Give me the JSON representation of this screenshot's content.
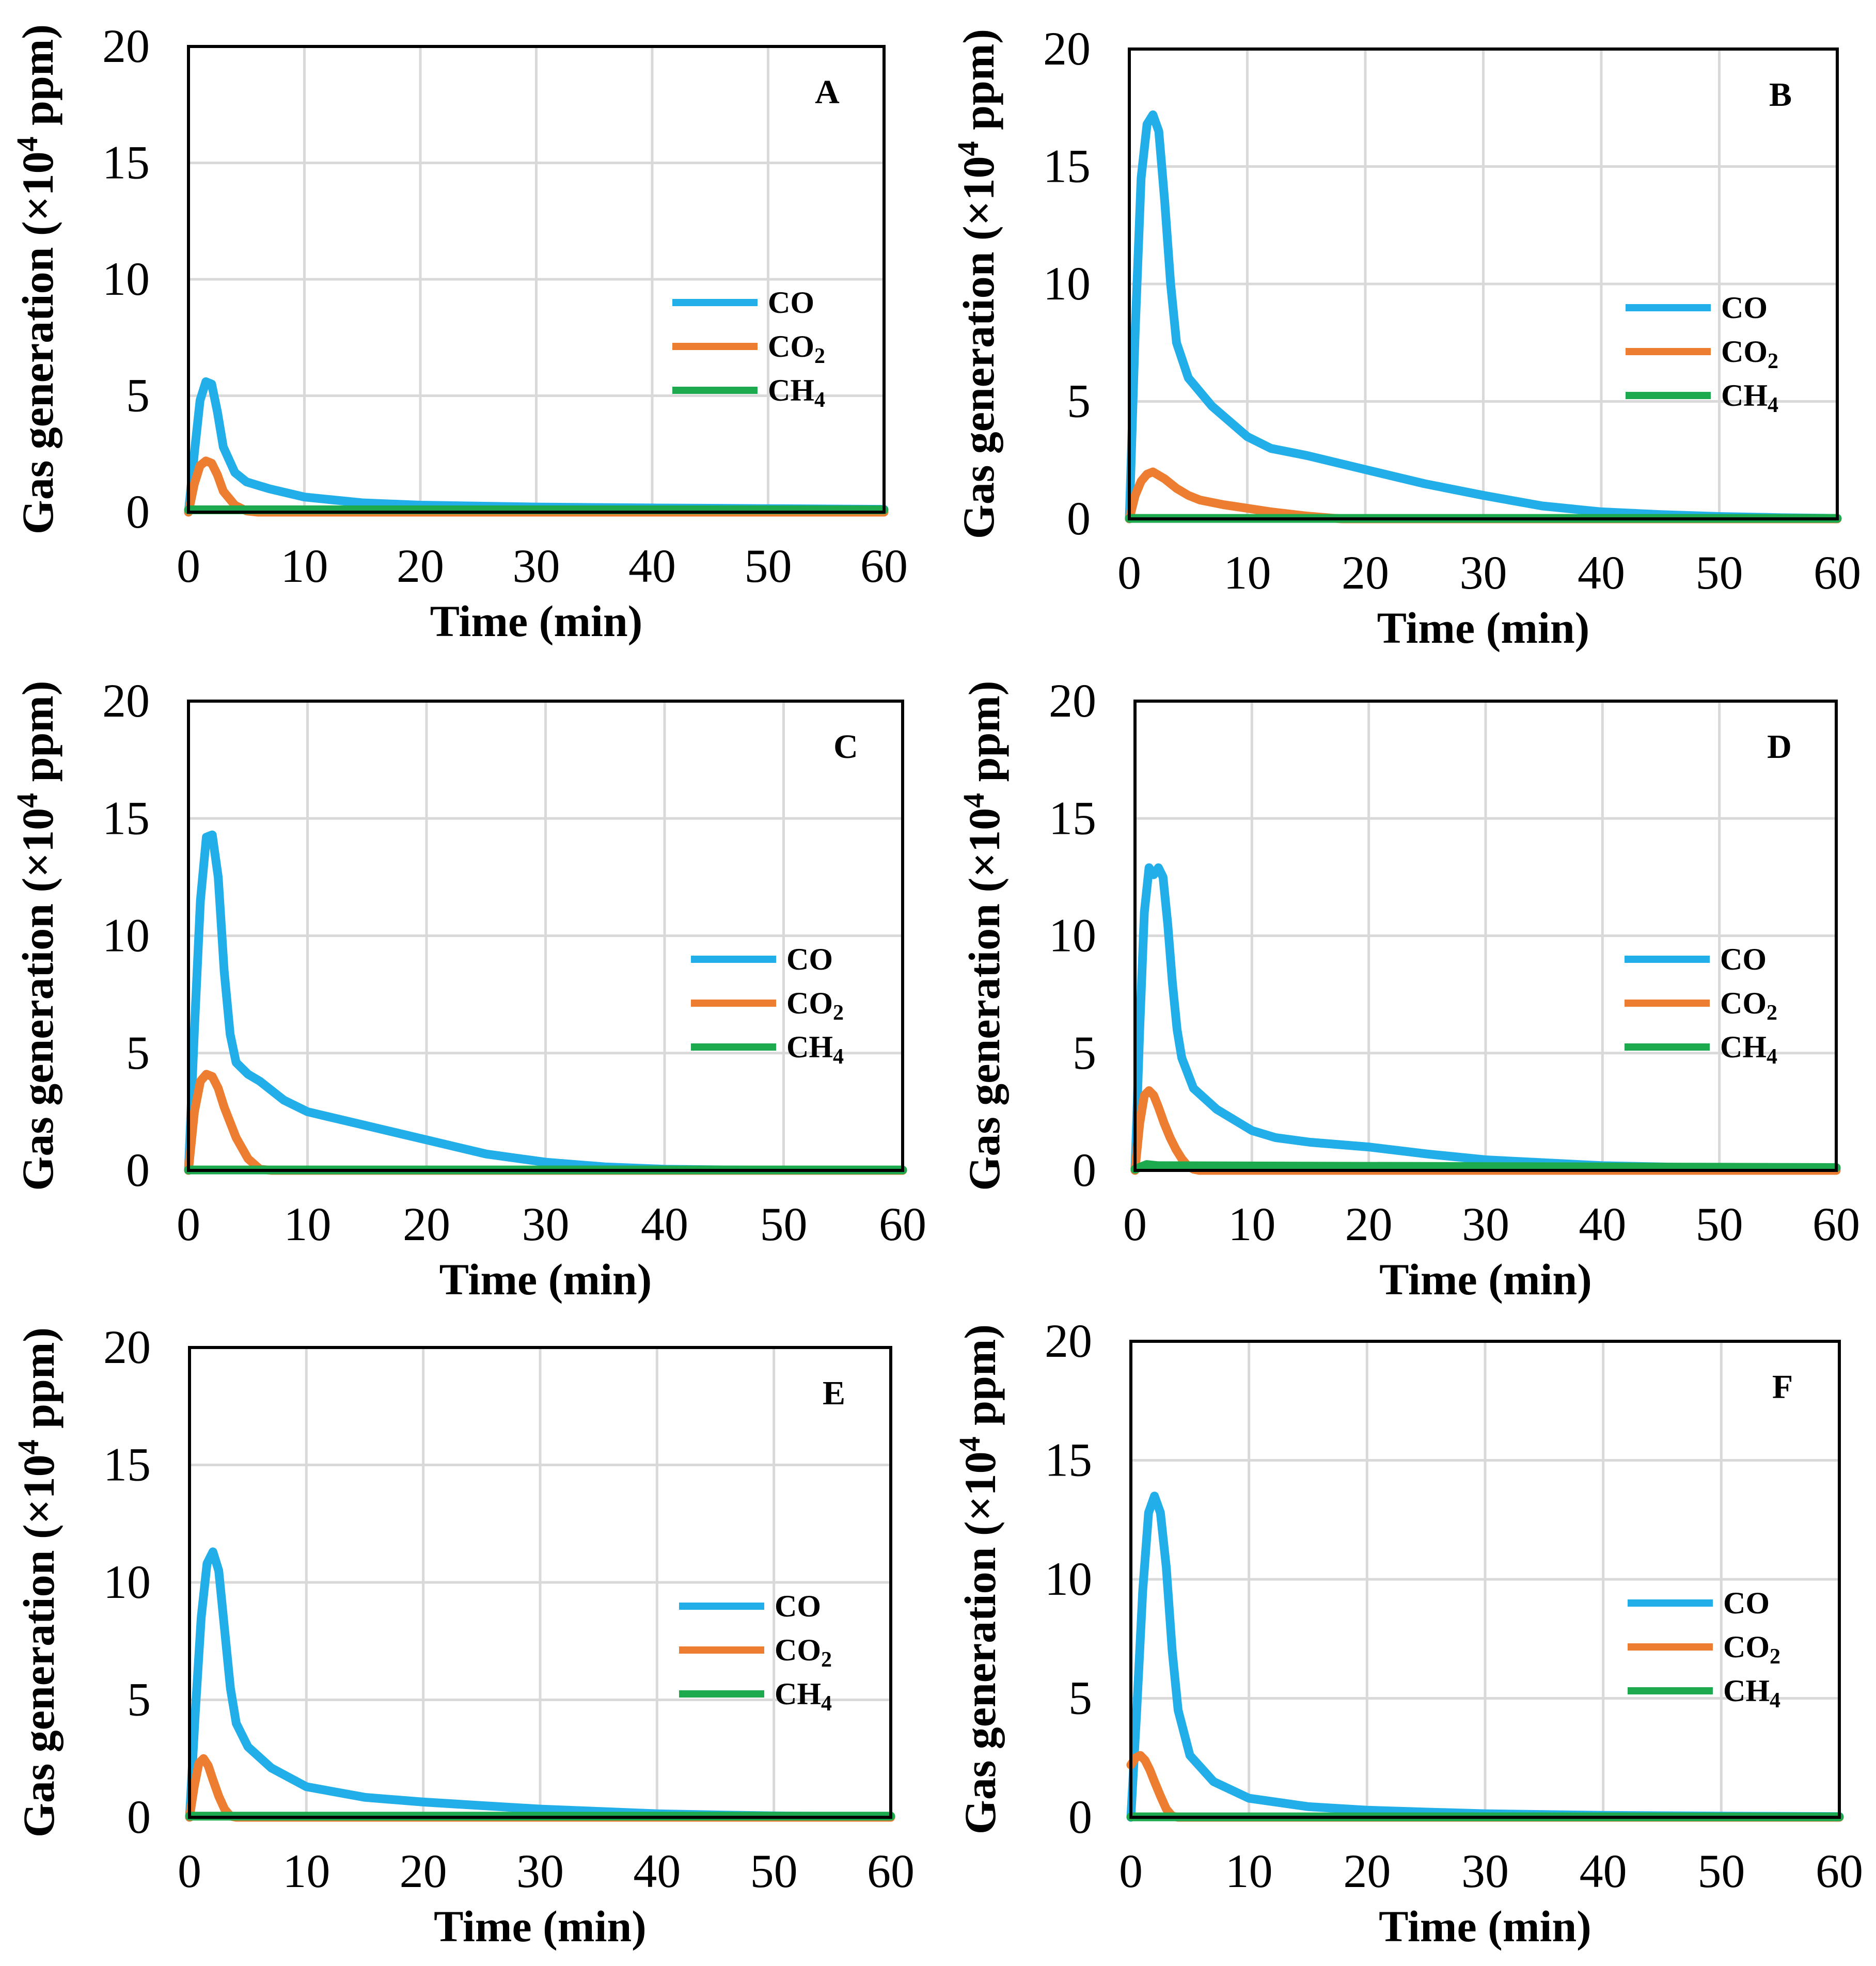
{
  "figure_title": "",
  "colors": {
    "CO": "#22aee8",
    "CO2": "#ed7d31",
    "CH4": "#1daa4f"
  },
  "chart_data": [
    {
      "type": "line",
      "panel_label": "A",
      "xlabel": "Time (min)",
      "ylabel": "Gas generation (×10^4 ppm)",
      "xlim": [
        0,
        60
      ],
      "ylim": [
        0,
        20
      ],
      "xticks": [
        0,
        10,
        20,
        30,
        40,
        50,
        60
      ],
      "yticks": [
        0,
        5,
        10,
        15,
        20
      ],
      "grid": true,
      "legend_position": "right",
      "series": [
        {
          "name": "CO",
          "legend_label": "CO",
          "legend_sub": "",
          "color": "#22aee8",
          "x": [
            0,
            0.5,
            1,
            1.5,
            2,
            2.5,
            3,
            4,
            5,
            7,
            10,
            15,
            20,
            30,
            40,
            50,
            60
          ],
          "y": [
            0,
            2.5,
            4.8,
            5.6,
            5.5,
            4.3,
            2.8,
            1.7,
            1.3,
            1.0,
            0.65,
            0.4,
            0.3,
            0.22,
            0.18,
            0.15,
            0.12
          ]
        },
        {
          "name": "CO2",
          "legend_label": "CO",
          "legend_sub": "2",
          "color": "#ed7d31",
          "x": [
            0,
            0.5,
            1,
            1.5,
            2,
            2.5,
            3,
            4,
            5,
            6,
            60
          ],
          "y": [
            0,
            1.2,
            2.0,
            2.2,
            2.1,
            1.6,
            0.9,
            0.3,
            0.05,
            0,
            0
          ]
        },
        {
          "name": "CH4",
          "legend_label": "CH",
          "legend_sub": "4",
          "color": "#1daa4f",
          "x": [
            0,
            60
          ],
          "y": [
            0.1,
            0.1
          ]
        }
      ]
    },
    {
      "type": "line",
      "panel_label": "B",
      "xlabel": "Time (min)",
      "ylabel": "Gas generation (×10^4 ppm)",
      "xlim": [
        0,
        60
      ],
      "ylim": [
        0,
        20
      ],
      "xticks": [
        0,
        10,
        20,
        30,
        40,
        50,
        60
      ],
      "yticks": [
        0,
        5,
        10,
        15,
        20
      ],
      "grid": true,
      "legend_position": "right",
      "series": [
        {
          "name": "CO",
          "legend_label": "CO",
          "legend_sub": "",
          "color": "#22aee8",
          "x": [
            0,
            0.5,
            1,
            1.5,
            2,
            2.5,
            3,
            3.5,
            4,
            5,
            7,
            10,
            12,
            15,
            20,
            25,
            30,
            35,
            40,
            45,
            50,
            55,
            60
          ],
          "y": [
            0,
            8,
            14.5,
            16.8,
            17.2,
            16.5,
            13.5,
            10,
            7.5,
            6.0,
            4.8,
            3.5,
            3.0,
            2.7,
            2.1,
            1.5,
            1.0,
            0.55,
            0.3,
            0.18,
            0.1,
            0.05,
            0.02
          ]
        },
        {
          "name": "CO2",
          "legend_label": "CO",
          "legend_sub": "2",
          "color": "#ed7d31",
          "x": [
            0,
            0.5,
            1,
            1.5,
            2,
            3,
            4,
            5,
            6,
            8,
            10,
            12,
            15,
            17,
            18,
            60
          ],
          "y": [
            0,
            1.0,
            1.6,
            1.9,
            2.0,
            1.7,
            1.3,
            1.0,
            0.8,
            0.6,
            0.45,
            0.3,
            0.12,
            0.04,
            0,
            0
          ]
        },
        {
          "name": "CH4",
          "legend_label": "CH",
          "legend_sub": "4",
          "color": "#1daa4f",
          "x": [
            0,
            60
          ],
          "y": [
            0.02,
            0.02
          ]
        }
      ]
    },
    {
      "type": "line",
      "panel_label": "C",
      "xlabel": "Time (min)",
      "ylabel": "Gas generation (×10^4 ppm)",
      "xlim": [
        0,
        60
      ],
      "ylim": [
        0,
        20
      ],
      "xticks": [
        0,
        10,
        20,
        30,
        40,
        50,
        60
      ],
      "yticks": [
        0,
        5,
        10,
        15,
        20
      ],
      "grid": true,
      "legend_position": "right",
      "series": [
        {
          "name": "CO",
          "legend_label": "CO",
          "legend_sub": "",
          "color": "#22aee8",
          "x": [
            0,
            0.5,
            1,
            1.5,
            2,
            2.5,
            3,
            3.5,
            4,
            5,
            6,
            8,
            10,
            15,
            20,
            25,
            30,
            35,
            40,
            45,
            50,
            55,
            60
          ],
          "y": [
            0,
            6,
            11.5,
            14.2,
            14.3,
            12.5,
            8.5,
            5.8,
            4.6,
            4.1,
            3.8,
            3.0,
            2.5,
            1.9,
            1.3,
            0.7,
            0.35,
            0.15,
            0.05,
            0.02,
            0,
            0,
            0
          ]
        },
        {
          "name": "CO2",
          "legend_label": "CO",
          "legend_sub": "2",
          "color": "#ed7d31",
          "x": [
            0,
            0.5,
            1,
            1.5,
            2,
            2.5,
            3,
            4,
            5,
            6,
            7,
            60
          ],
          "y": [
            0,
            2.5,
            3.8,
            4.1,
            4.0,
            3.5,
            2.7,
            1.4,
            0.5,
            0.05,
            0,
            0
          ]
        },
        {
          "name": "CH4",
          "legend_label": "CH",
          "legend_sub": "4",
          "color": "#1daa4f",
          "x": [
            0,
            60
          ],
          "y": [
            0.02,
            0.02
          ]
        }
      ]
    },
    {
      "type": "line",
      "panel_label": "D",
      "xlabel": "Time (min)",
      "ylabel": "Gas generation (×10^4 ppm)",
      "xlim": [
        0,
        60
      ],
      "ylim": [
        0,
        20
      ],
      "xticks": [
        0,
        10,
        20,
        30,
        40,
        50,
        60
      ],
      "yticks": [
        0,
        5,
        10,
        15,
        20
      ],
      "grid": true,
      "legend_position": "right",
      "series": [
        {
          "name": "CO",
          "legend_label": "CO",
          "legend_sub": "",
          "color": "#22aee8",
          "x": [
            0,
            0.4,
            0.8,
            1.2,
            1.6,
            2.0,
            2.4,
            2.8,
            3.2,
            3.6,
            4,
            5,
            7,
            10,
            12,
            15,
            20,
            25,
            30,
            40,
            50,
            60
          ],
          "y": [
            0,
            6,
            11,
            12.9,
            12.6,
            12.9,
            12.5,
            10.5,
            8,
            6,
            4.8,
            3.5,
            2.6,
            1.7,
            1.4,
            1.2,
            1.0,
            0.7,
            0.45,
            0.2,
            0.1,
            0.05
          ]
        },
        {
          "name": "CO2",
          "legend_label": "CO",
          "legend_sub": "2",
          "color": "#ed7d31",
          "x": [
            0,
            0.4,
            0.8,
            1.2,
            1.6,
            2.0,
            2.5,
            3,
            3.5,
            4,
            4.5,
            5,
            5.5,
            60
          ],
          "y": [
            0,
            2.0,
            3.2,
            3.4,
            3.2,
            2.7,
            2.0,
            1.4,
            0.9,
            0.5,
            0.2,
            0.05,
            0,
            0
          ]
        },
        {
          "name": "CH4",
          "legend_label": "CH",
          "legend_sub": "4",
          "color": "#1daa4f",
          "x": [
            0,
            1,
            2,
            60
          ],
          "y": [
            0.05,
            0.25,
            0.2,
            0.12
          ]
        }
      ]
    },
    {
      "type": "line",
      "panel_label": "E",
      "xlabel": "Time (min)",
      "ylabel": "Gas generation (×10^4 ppm)",
      "xlim": [
        0,
        60
      ],
      "ylim": [
        0,
        20
      ],
      "xticks": [
        0,
        10,
        20,
        30,
        40,
        50,
        60
      ],
      "yticks": [
        0,
        5,
        10,
        15,
        20
      ],
      "grid": true,
      "legend_position": "right",
      "series": [
        {
          "name": "CO",
          "legend_label": "CO",
          "legend_sub": "",
          "color": "#22aee8",
          "x": [
            0,
            0.5,
            1,
            1.5,
            2,
            2.5,
            3,
            3.5,
            4,
            5,
            7,
            10,
            15,
            20,
            25,
            30,
            35,
            40,
            45,
            50,
            55,
            60
          ],
          "y": [
            0,
            4.5,
            8.5,
            10.8,
            11.3,
            10.5,
            8.0,
            5.5,
            4.0,
            3.0,
            2.1,
            1.3,
            0.85,
            0.65,
            0.5,
            0.35,
            0.25,
            0.15,
            0.1,
            0.06,
            0.04,
            0.02
          ]
        },
        {
          "name": "CO2",
          "legend_label": "CO",
          "legend_sub": "2",
          "color": "#ed7d31",
          "x": [
            0,
            0.4,
            0.8,
            1.2,
            1.6,
            2.0,
            2.5,
            3,
            3.5,
            4,
            60
          ],
          "y": [
            0,
            1.3,
            2.3,
            2.5,
            2.2,
            1.6,
            0.9,
            0.35,
            0.05,
            0,
            0
          ]
        },
        {
          "name": "CH4",
          "legend_label": "CH",
          "legend_sub": "4",
          "color": "#1daa4f",
          "x": [
            0,
            60
          ],
          "y": [
            0.05,
            0.05
          ]
        }
      ]
    },
    {
      "type": "line",
      "panel_label": "F",
      "xlabel": "Time (min)",
      "ylabel": "Gas generation (×10^4 ppm)",
      "xlim": [
        0,
        60
      ],
      "ylim": [
        0,
        20
      ],
      "xticks": [
        0,
        10,
        20,
        30,
        40,
        50,
        60
      ],
      "yticks": [
        0,
        5,
        10,
        15,
        20
      ],
      "grid": true,
      "legend_position": "right",
      "series": [
        {
          "name": "CO",
          "legend_label": "CO",
          "legend_sub": "",
          "color": "#22aee8",
          "x": [
            0,
            0.5,
            1,
            1.5,
            2,
            2.5,
            3,
            3.5,
            4,
            5,
            7,
            10,
            15,
            20,
            25,
            30,
            40,
            50,
            60
          ],
          "y": [
            0,
            4.5,
            9.5,
            12.8,
            13.5,
            12.8,
            10.5,
            7.0,
            4.5,
            2.6,
            1.5,
            0.8,
            0.45,
            0.3,
            0.22,
            0.15,
            0.08,
            0.05,
            0.03
          ]
        },
        {
          "name": "CO2",
          "legend_label": "CO",
          "legend_sub": "2",
          "color": "#ed7d31",
          "x": [
            0,
            0.4,
            0.8,
            1.2,
            1.6,
            2.0,
            2.5,
            3,
            3.5,
            4,
            60
          ],
          "y": [
            2.2,
            2.5,
            2.6,
            2.4,
            2.0,
            1.5,
            0.9,
            0.35,
            0.05,
            0,
            0
          ]
        },
        {
          "name": "CH4",
          "legend_label": "CH",
          "legend_sub": "4",
          "color": "#1daa4f",
          "x": [
            0,
            60
          ],
          "y": [
            0.02,
            0.02
          ]
        }
      ]
    }
  ]
}
